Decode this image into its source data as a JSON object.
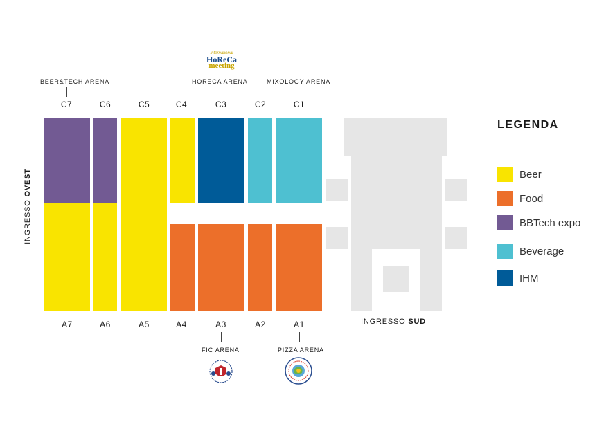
{
  "colors": {
    "beer": "#f9e400",
    "food": "#ec6f2a",
    "bbtech": "#725a93",
    "beverage": "#4ec0d1",
    "ihm": "#005b98",
    "building": "#e6e6e6"
  },
  "halls_top": {
    "c7": "C7",
    "c6": "C6",
    "c5": "C5",
    "c4": "C4",
    "c3": "C3",
    "c2": "C2",
    "c1": "C1"
  },
  "halls_bottom": {
    "a7": "A7",
    "a6": "A6",
    "a5": "A5",
    "a4": "A4",
    "a3": "A3",
    "a2": "A2",
    "a1": "A1"
  },
  "arenas": {
    "beer_tech": "BEER&TECH ARENA",
    "horeca": "HORECA ARENA",
    "mixology": "MIXOLOGY ARENA",
    "fic": "FIC ARENA",
    "pizza": "PIZZA ARENA"
  },
  "logos": {
    "horeca_line1": "International",
    "horeca_line2": "HoReCa",
    "horeca_line3": "meeting"
  },
  "entrances": {
    "west_prefix": "INGRESSO ",
    "west_bold": "OVEST",
    "south_prefix": "INGRESSO ",
    "south_bold": "SUD"
  },
  "legend": {
    "title": "LEGENDA",
    "items": [
      {
        "label": "Beer"
      },
      {
        "label": "Food"
      },
      {
        "label": "BBTech expo"
      },
      {
        "label": "Beverage"
      },
      {
        "label": "IHM"
      }
    ]
  }
}
